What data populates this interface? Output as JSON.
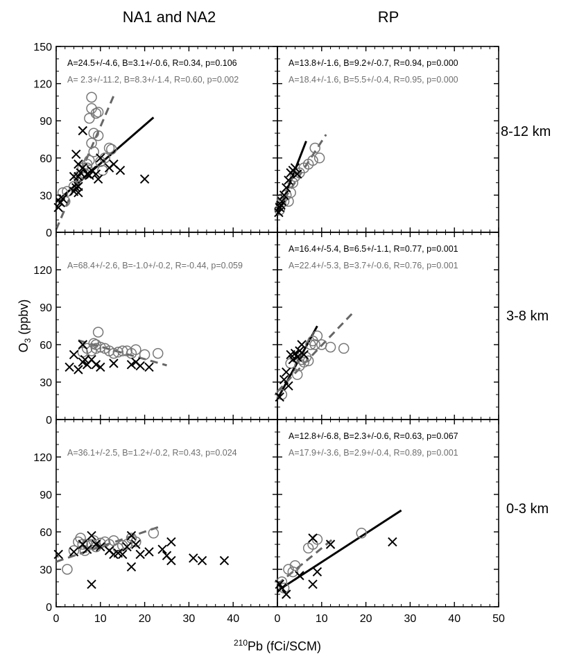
{
  "header": {
    "left_title": "NA1 and NA2",
    "right_title": "RP"
  },
  "axes": {
    "xlabel_sup": "210",
    "xlabel_main": "Pb (fCi/SCM)",
    "ylabel_main": "O",
    "ylabel_sub": "3",
    "ylabel_tail": " (ppbv)",
    "x_ticks_left": [
      "0",
      "10",
      "20",
      "30",
      "40"
    ],
    "x_ticks_right": [
      "0",
      "10",
      "20",
      "30",
      "40",
      "50"
    ],
    "y_ticks_top": [
      "0",
      "30",
      "60",
      "90",
      "120",
      "150"
    ],
    "y_ticks_inner": [
      "0",
      "30",
      "60",
      "90",
      "120"
    ]
  },
  "row_labels": [
    "8-12 km",
    "3-8 km",
    "0-3 km"
  ],
  "colors": {
    "cross": "#000000",
    "circle": "#777777",
    "fit_black": "#000000",
    "fit_gray": "#666666",
    "text_gray": "#6e6e6e"
  },
  "chart_data": {
    "type": "scatter",
    "xlim": [
      0,
      50
    ],
    "ylim": [
      0,
      150
    ],
    "series_markers": {
      "x_marker": "cross",
      "circle_marker": "circle"
    },
    "panels": [
      {
        "row": "8-12 km",
        "column": "NA1 and NA2",
        "annotations": [
          "A=24.5+/-4.6, B=3.1+/-0.6, R=0.34, p=0.106",
          "A=  2.3+/-11.2, B=8.3+/-1.4, R=0.60, p=0.002"
        ],
        "cross_points": [
          [
            0.5,
            20
          ],
          [
            1,
            24
          ],
          [
            1.5,
            27
          ],
          [
            4,
            33
          ],
          [
            4.5,
            63
          ],
          [
            5,
            37
          ],
          [
            5,
            45
          ],
          [
            5.5,
            48
          ],
          [
            5,
            55
          ],
          [
            6,
            82
          ],
          [
            6,
            52
          ],
          [
            7,
            47
          ],
          [
            7.5,
            46
          ],
          [
            8,
            50
          ],
          [
            9,
            47
          ],
          [
            9.5,
            43
          ],
          [
            10,
            60
          ],
          [
            12,
            52
          ],
          [
            13,
            55
          ],
          [
            14.5,
            50
          ],
          [
            20,
            43
          ],
          [
            4,
            45
          ],
          [
            4.5,
            36
          ],
          [
            5,
            32
          ]
        ],
        "circle_points": [
          [
            1.5,
            32
          ],
          [
            2,
            25
          ],
          [
            2.5,
            33
          ],
          [
            4,
            37
          ],
          [
            5,
            45
          ],
          [
            6,
            52
          ],
          [
            6.5,
            47
          ],
          [
            7,
            52
          ],
          [
            7.5,
            58
          ],
          [
            7.5,
            92
          ],
          [
            8,
            109
          ],
          [
            8,
            100
          ],
          [
            8,
            72
          ],
          [
            8.5,
            65
          ],
          [
            8.5,
            80
          ],
          [
            9,
            96
          ],
          [
            9.5,
            97
          ],
          [
            9.5,
            78
          ],
          [
            10,
            57
          ],
          [
            10.5,
            50
          ],
          [
            11,
            60
          ],
          [
            12,
            68
          ],
          [
            12.5,
            67
          ],
          [
            7,
            55
          ]
        ],
        "fits": [
          {
            "color": "black",
            "style": "solid",
            "A": 24.5,
            "B": 3.1,
            "x_range": [
              0,
              22
            ]
          },
          {
            "color": "gray",
            "style": "dashed",
            "A": 2.3,
            "B": 8.3,
            "x_range": [
              0,
              13
            ]
          }
        ]
      },
      {
        "row": "8-12 km",
        "column": "RP",
        "annotations": [
          "A=13.8+/-1.6, B=9.2+/-0.7, R=0.94, p=0.000",
          "A=18.4+/-1.6, B=5.5+/-0.4, R=0.95, p=0.000"
        ],
        "cross_points": [
          [
            0.3,
            16
          ],
          [
            0.5,
            20
          ],
          [
            0.8,
            22
          ],
          [
            1,
            25
          ],
          [
            1.5,
            30
          ],
          [
            2,
            36
          ],
          [
            2.5,
            42
          ],
          [
            3,
            48
          ],
          [
            3.5,
            50
          ],
          [
            4,
            52
          ],
          [
            4.5,
            47
          ]
        ],
        "circle_points": [
          [
            0.5,
            18
          ],
          [
            0.8,
            23
          ],
          [
            1,
            27
          ],
          [
            1.5,
            25
          ],
          [
            2,
            30
          ],
          [
            2.5,
            25
          ],
          [
            3,
            32
          ],
          [
            3.5,
            40
          ],
          [
            4,
            45
          ],
          [
            5,
            48
          ],
          [
            6,
            52
          ],
          [
            7,
            55
          ],
          [
            8,
            58
          ],
          [
            8.5,
            68
          ],
          [
            9.5,
            60
          ]
        ],
        "fits": [
          {
            "color": "black",
            "style": "solid",
            "A": 13.8,
            "B": 9.2,
            "x_range": [
              0,
              6.5
            ]
          },
          {
            "color": "gray",
            "style": "dashed",
            "A": 18.4,
            "B": 5.5,
            "x_range": [
              0,
              11
            ]
          }
        ]
      },
      {
        "row": "3-8 km",
        "column": "NA1 and NA2",
        "annotations": [
          "",
          "A=68.4+/-2.6, B=-1.0+/-0.2, R=-0.44, p=0.059"
        ],
        "cross_points": [
          [
            3,
            42
          ],
          [
            4,
            52
          ],
          [
            5,
            40
          ],
          [
            6,
            46
          ],
          [
            6.5,
            48
          ],
          [
            7,
            44
          ],
          [
            8,
            48
          ],
          [
            9,
            44
          ],
          [
            10,
            42
          ],
          [
            13,
            45
          ],
          [
            17,
            44
          ],
          [
            18,
            46
          ],
          [
            19,
            43
          ],
          [
            21,
            42
          ],
          [
            6,
            60
          ]
        ],
        "circle_points": [
          [
            6,
            54
          ],
          [
            7,
            57
          ],
          [
            8,
            55
          ],
          [
            9,
            60
          ],
          [
            9.5,
            70
          ],
          [
            10,
            58
          ],
          [
            11,
            57
          ],
          [
            12,
            55
          ],
          [
            13,
            53
          ],
          [
            14,
            54
          ],
          [
            15,
            55
          ],
          [
            16,
            55
          ],
          [
            17,
            53
          ],
          [
            18,
            56
          ],
          [
            20,
            52
          ],
          [
            23,
            53
          ],
          [
            9,
            57
          ],
          [
            8.5,
            61
          ]
        ],
        "fits": [
          {
            "color": "gray",
            "style": "dashed",
            "A": 68.4,
            "B": -1.0,
            "x_range": [
              5,
              25
            ]
          }
        ]
      },
      {
        "row": "3-8 km",
        "column": "RP",
        "annotations": [
          "A=16.4+/-5.4, B=6.5+/-1.1, R=0.77, p=0.001",
          "A=22.4+/-5.3, B=3.7+/-0.6, R=0.76, p=0.001"
        ],
        "cross_points": [
          [
            0.5,
            18
          ],
          [
            1.5,
            32
          ],
          [
            2,
            38
          ],
          [
            3,
            52
          ],
          [
            3.5,
            48
          ],
          [
            4,
            53
          ],
          [
            4.5,
            50
          ],
          [
            5,
            55
          ],
          [
            5.5,
            60
          ],
          [
            6,
            52
          ],
          [
            2.5,
            27
          ]
        ],
        "circle_points": [
          [
            1,
            20
          ],
          [
            3,
            45
          ],
          [
            4,
            50
          ],
          [
            4.5,
            36
          ],
          [
            5,
            43
          ],
          [
            5.5,
            48
          ],
          [
            6,
            46
          ],
          [
            6.5,
            50
          ],
          [
            7,
            47
          ],
          [
            7.5,
            60
          ],
          [
            8,
            63
          ],
          [
            8.5,
            60
          ],
          [
            9,
            67
          ],
          [
            10,
            60
          ],
          [
            12,
            58
          ],
          [
            15,
            57
          ]
        ],
        "fits": [
          {
            "color": "black",
            "style": "solid",
            "A": 16.4,
            "B": 6.5,
            "x_range": [
              0,
              9
            ]
          },
          {
            "color": "gray",
            "style": "dashed",
            "A": 22.4,
            "B": 3.7,
            "x_range": [
              0,
              17
            ]
          }
        ]
      },
      {
        "row": "0-3 km",
        "column": "NA1 and NA2",
        "annotations": [
          "",
          "A=36.1+/-2.5, B=1.2+/-0.2, R=0.43, p=0.024"
        ],
        "cross_points": [
          [
            0.5,
            42
          ],
          [
            4,
            44
          ],
          [
            6,
            50
          ],
          [
            7,
            46
          ],
          [
            8,
            57
          ],
          [
            8,
            18
          ],
          [
            9,
            50
          ],
          [
            10,
            48
          ],
          [
            12,
            45
          ],
          [
            13,
            42
          ],
          [
            14,
            43
          ],
          [
            15,
            42
          ],
          [
            16,
            48
          ],
          [
            17,
            57
          ],
          [
            17,
            32
          ],
          [
            18,
            50
          ],
          [
            19,
            42
          ],
          [
            21,
            44
          ],
          [
            24,
            46
          ],
          [
            25,
            41
          ],
          [
            26,
            52
          ],
          [
            26,
            37
          ],
          [
            31,
            39
          ],
          [
            33,
            37
          ],
          [
            38,
            37
          ]
        ],
        "circle_points": [
          [
            2.5,
            30
          ],
          [
            4,
            45
          ],
          [
            5,
            52
          ],
          [
            5.5,
            55
          ],
          [
            6,
            50
          ],
          [
            6.5,
            45
          ],
          [
            7,
            50
          ],
          [
            8,
            50
          ],
          [
            8.5,
            53
          ],
          [
            9,
            48
          ],
          [
            10,
            51
          ],
          [
            11,
            52
          ],
          [
            12,
            50
          ],
          [
            13,
            53
          ],
          [
            14,
            47
          ],
          [
            15,
            49
          ],
          [
            16,
            50
          ],
          [
            17,
            55
          ],
          [
            18,
            52
          ],
          [
            22,
            59
          ]
        ],
        "fits": [
          {
            "color": "gray",
            "style": "dashed",
            "A": 36.1,
            "B": 1.2,
            "x_range": [
              0,
              24
            ]
          }
        ]
      },
      {
        "row": "0-3 km",
        "column": "RP",
        "annotations": [
          "A=12.8+/-6.8, B=2.3+/-0.6, R=0.63, p=0.067",
          "A=17.9+/-3.6, B=2.9+/-0.4, R=0.89, p=0.001"
        ],
        "cross_points": [
          [
            0.5,
            18
          ],
          [
            1,
            15
          ],
          [
            2,
            10
          ],
          [
            5,
            25
          ],
          [
            8,
            18
          ],
          [
            8,
            55
          ],
          [
            9,
            28
          ],
          [
            12,
            50
          ],
          [
            26,
            52
          ]
        ],
        "circle_points": [
          [
            1,
            20
          ],
          [
            1.5,
            15
          ],
          [
            2.5,
            30
          ],
          [
            3.5,
            28
          ],
          [
            4,
            33
          ],
          [
            7,
            47
          ],
          [
            8,
            50
          ],
          [
            9,
            54
          ],
          [
            19,
            59
          ]
        ],
        "fits": [
          {
            "color": "black",
            "style": "solid",
            "A": 12.8,
            "B": 2.3,
            "x_range": [
              0,
              28
            ]
          },
          {
            "color": "gray",
            "style": "dashed",
            "A": 17.9,
            "B": 2.9,
            "x_range": [
              0,
              13
            ]
          }
        ]
      }
    ]
  }
}
